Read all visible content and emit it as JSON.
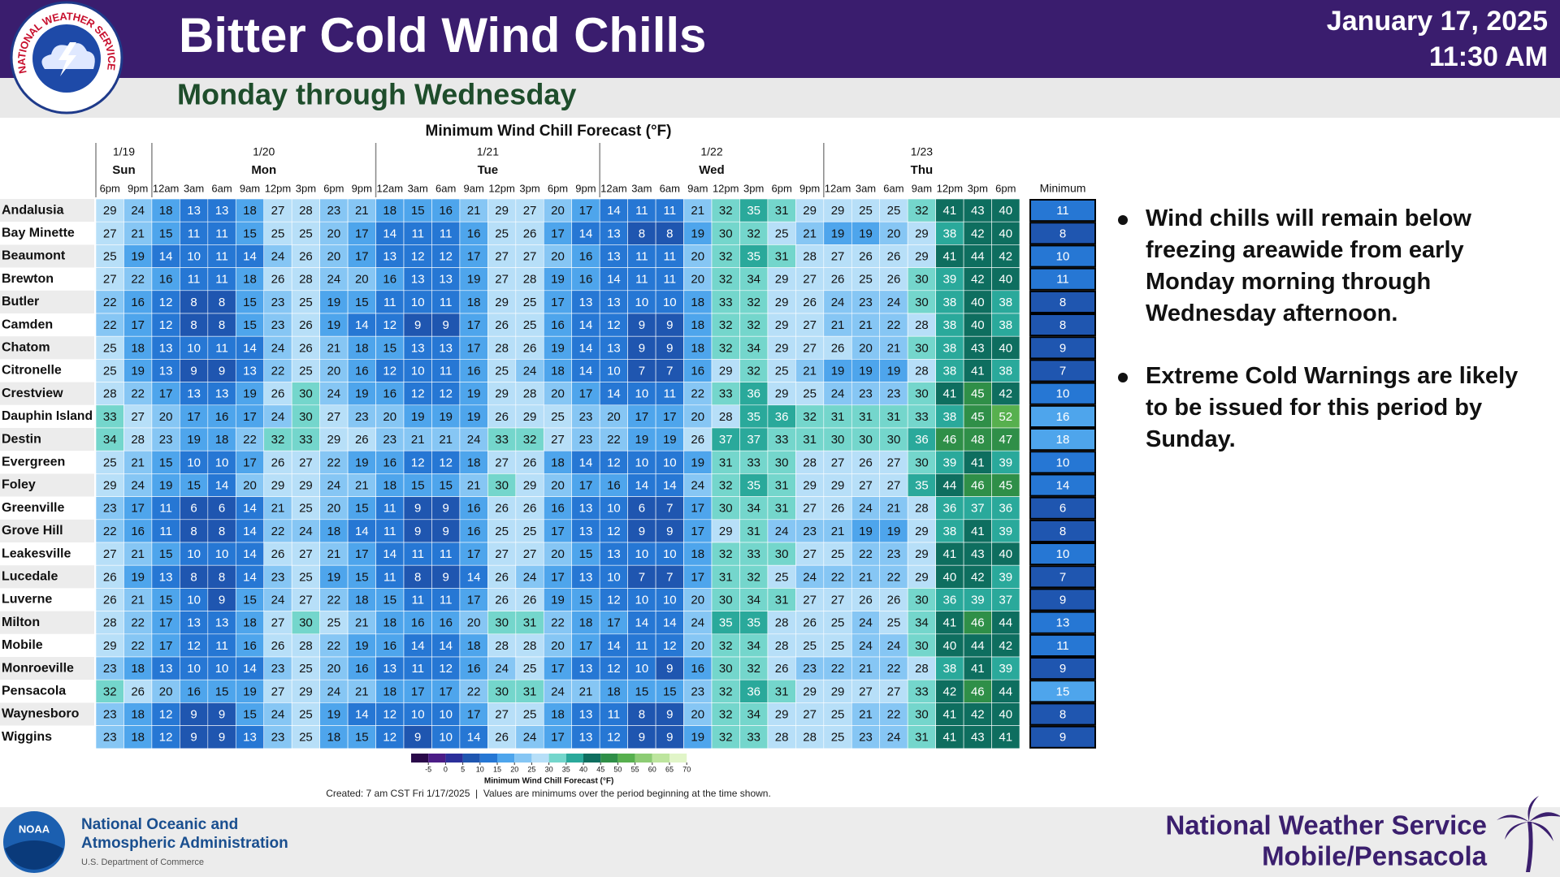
{
  "header": {
    "title": "Bitter Cold Wind Chills",
    "subtitle": "Monday through Wednesday",
    "date": "January 17, 2025",
    "time": "11:30 AM",
    "logo_text": "NATIONAL WEATHER SERVICE"
  },
  "table": {
    "title": "Minimum Wind Chill Forecast (°F)",
    "minimum_label": "Minimum",
    "days": [
      {
        "date": "1/19",
        "day": "Sun",
        "times": [
          "6pm",
          "9pm"
        ]
      },
      {
        "date": "1/20",
        "day": "Mon",
        "times": [
          "12am",
          "3am",
          "6am",
          "9am",
          "12pm",
          "3pm",
          "6pm",
          "9pm"
        ]
      },
      {
        "date": "1/21",
        "day": "Tue",
        "times": [
          "12am",
          "3am",
          "6am",
          "9am",
          "12pm",
          "3pm",
          "6pm",
          "9pm"
        ]
      },
      {
        "date": "1/22",
        "day": "Wed",
        "times": [
          "12am",
          "3am",
          "6am",
          "9am",
          "12pm",
          "3pm",
          "6pm",
          "9pm"
        ]
      },
      {
        "date": "1/23",
        "day": "Thu",
        "times": [
          "12am",
          "3am",
          "6am",
          "9am",
          "12pm",
          "3pm",
          "6pm"
        ]
      }
    ],
    "rows": [
      {
        "name": "Andalusia",
        "values": [
          29,
          24,
          18,
          13,
          13,
          18,
          27,
          28,
          23,
          21,
          18,
          15,
          16,
          21,
          29,
          27,
          20,
          17,
          14,
          11,
          11,
          21,
          32,
          35,
          31,
          29,
          29,
          25,
          25,
          32,
          41,
          43,
          40
        ],
        "minimum": 11
      },
      {
        "name": "Bay Minette",
        "values": [
          27,
          21,
          15,
          11,
          11,
          15,
          25,
          25,
          20,
          17,
          14,
          11,
          11,
          16,
          25,
          26,
          17,
          14,
          13,
          8,
          8,
          19,
          30,
          32,
          25,
          21,
          19,
          19,
          20,
          29,
          38,
          42,
          40
        ],
        "minimum": 8
      },
      {
        "name": "Beaumont",
        "values": [
          25,
          19,
          14,
          10,
          11,
          14,
          24,
          26,
          20,
          17,
          13,
          12,
          12,
          17,
          27,
          27,
          20,
          16,
          13,
          11,
          11,
          20,
          32,
          35,
          31,
          28,
          27,
          26,
          26,
          29,
          41,
          44,
          42
        ],
        "minimum": 10
      },
      {
        "name": "Brewton",
        "values": [
          27,
          22,
          16,
          11,
          11,
          18,
          26,
          28,
          24,
          20,
          16,
          13,
          13,
          19,
          27,
          28,
          19,
          16,
          14,
          11,
          11,
          20,
          32,
          34,
          29,
          27,
          26,
          25,
          26,
          30,
          39,
          42,
          40
        ],
        "minimum": 11
      },
      {
        "name": "Butler",
        "values": [
          22,
          16,
          12,
          8,
          8,
          15,
          23,
          25,
          19,
          15,
          11,
          10,
          11,
          18,
          29,
          25,
          17,
          13,
          13,
          10,
          10,
          18,
          33,
          32,
          29,
          26,
          24,
          23,
          24,
          30,
          38,
          40,
          38
        ],
        "minimum": 8
      },
      {
        "name": "Camden",
        "values": [
          22,
          17,
          12,
          8,
          8,
          15,
          23,
          26,
          19,
          14,
          12,
          9,
          9,
          17,
          26,
          25,
          16,
          14,
          12,
          9,
          9,
          18,
          32,
          32,
          29,
          27,
          21,
          21,
          22,
          28,
          38,
          40,
          38
        ],
        "minimum": 8
      },
      {
        "name": "Chatom",
        "values": [
          25,
          18,
          13,
          10,
          11,
          14,
          24,
          26,
          21,
          18,
          15,
          13,
          13,
          17,
          28,
          26,
          19,
          14,
          13,
          9,
          9,
          18,
          32,
          34,
          29,
          27,
          26,
          20,
          21,
          30,
          38,
          43,
          40
        ],
        "minimum": 9
      },
      {
        "name": "Citronelle",
        "values": [
          25,
          19,
          13,
          9,
          9,
          13,
          22,
          25,
          20,
          16,
          12,
          10,
          11,
          16,
          25,
          24,
          18,
          14,
          10,
          7,
          7,
          16,
          29,
          32,
          25,
          21,
          19,
          19,
          19,
          28,
          38,
          41,
          38
        ],
        "minimum": 7
      },
      {
        "name": "Crestview",
        "values": [
          28,
          22,
          17,
          13,
          13,
          19,
          26,
          30,
          24,
          19,
          16,
          12,
          12,
          19,
          29,
          28,
          20,
          17,
          14,
          10,
          11,
          22,
          33,
          36,
          29,
          25,
          24,
          23,
          23,
          30,
          41,
          45,
          42
        ],
        "minimum": 10
      },
      {
        "name": "Dauphin Island",
        "values": [
          33,
          27,
          20,
          17,
          16,
          17,
          24,
          30,
          27,
          23,
          20,
          19,
          19,
          19,
          26,
          29,
          25,
          23,
          20,
          17,
          17,
          20,
          28,
          35,
          36,
          32,
          31,
          31,
          31,
          33,
          38,
          45,
          52
        ],
        "minimum": 16
      },
      {
        "name": "Destin",
        "values": [
          34,
          28,
          23,
          19,
          18,
          22,
          32,
          33,
          29,
          26,
          23,
          21,
          21,
          24,
          33,
          32,
          27,
          23,
          22,
          19,
          19,
          26,
          37,
          37,
          33,
          31,
          30,
          30,
          30,
          36,
          46,
          48,
          47
        ],
        "minimum": 18
      },
      {
        "name": "Evergreen",
        "values": [
          25,
          21,
          15,
          10,
          10,
          17,
          26,
          27,
          22,
          19,
          16,
          12,
          12,
          18,
          27,
          26,
          18,
          14,
          12,
          10,
          10,
          19,
          31,
          33,
          30,
          28,
          27,
          26,
          27,
          30,
          39,
          41,
          39
        ],
        "minimum": 10
      },
      {
        "name": "Foley",
        "values": [
          29,
          24,
          19,
          15,
          14,
          20,
          29,
          29,
          24,
          21,
          18,
          15,
          15,
          21,
          30,
          29,
          20,
          17,
          16,
          14,
          14,
          24,
          32,
          35,
          31,
          29,
          29,
          27,
          27,
          35,
          44,
          46,
          45
        ],
        "minimum": 14
      },
      {
        "name": "Greenville",
        "values": [
          23,
          17,
          11,
          6,
          6,
          14,
          21,
          25,
          20,
          15,
          11,
          9,
          9,
          16,
          26,
          26,
          16,
          13,
          10,
          6,
          7,
          17,
          30,
          34,
          31,
          27,
          26,
          24,
          21,
          28,
          36,
          37,
          36
        ],
        "minimum": 6
      },
      {
        "name": "Grove Hill",
        "values": [
          22,
          16,
          11,
          8,
          8,
          14,
          22,
          24,
          18,
          14,
          11,
          9,
          9,
          16,
          25,
          25,
          17,
          13,
          12,
          9,
          9,
          17,
          29,
          31,
          24,
          23,
          21,
          19,
          19,
          29,
          38,
          41,
          39
        ],
        "minimum": 8
      },
      {
        "name": "Leakesville",
        "values": [
          27,
          21,
          15,
          10,
          10,
          14,
          26,
          27,
          21,
          17,
          14,
          11,
          11,
          17,
          27,
          27,
          20,
          15,
          13,
          10,
          10,
          18,
          32,
          33,
          30,
          27,
          25,
          22,
          23,
          29,
          41,
          43,
          40
        ],
        "minimum": 10
      },
      {
        "name": "Lucedale",
        "values": [
          26,
          19,
          13,
          8,
          8,
          14,
          23,
          25,
          19,
          15,
          11,
          8,
          9,
          14,
          26,
          24,
          17,
          13,
          10,
          7,
          7,
          17,
          31,
          32,
          25,
          24,
          22,
          21,
          22,
          29,
          40,
          42,
          39
        ],
        "minimum": 7
      },
      {
        "name": "Luverne",
        "values": [
          26,
          21,
          15,
          10,
          9,
          15,
          24,
          27,
          22,
          18,
          15,
          11,
          11,
          17,
          26,
          26,
          19,
          15,
          12,
          10,
          10,
          20,
          30,
          34,
          31,
          27,
          27,
          26,
          26,
          30,
          36,
          39,
          37
        ],
        "minimum": 9
      },
      {
        "name": "Milton",
        "values": [
          28,
          22,
          17,
          13,
          13,
          18,
          27,
          30,
          25,
          21,
          18,
          16,
          16,
          20,
          30,
          31,
          22,
          18,
          17,
          14,
          14,
          24,
          35,
          35,
          28,
          26,
          25,
          24,
          25,
          34,
          41,
          46,
          44
        ],
        "minimum": 13
      },
      {
        "name": "Mobile",
        "values": [
          29,
          22,
          17,
          12,
          11,
          16,
          26,
          28,
          22,
          19,
          16,
          14,
          14,
          18,
          28,
          28,
          20,
          17,
          14,
          11,
          12,
          20,
          32,
          34,
          28,
          25,
          25,
          24,
          24,
          30,
          40,
          44,
          42
        ],
        "minimum": 11
      },
      {
        "name": "Monroeville",
        "values": [
          23,
          18,
          13,
          10,
          10,
          14,
          23,
          25,
          20,
          16,
          13,
          11,
          12,
          16,
          24,
          25,
          17,
          13,
          12,
          10,
          9,
          16,
          30,
          32,
          26,
          23,
          22,
          21,
          22,
          28,
          38,
          41,
          39
        ],
        "minimum": 9
      },
      {
        "name": "Pensacola",
        "values": [
          32,
          26,
          20,
          16,
          15,
          19,
          27,
          29,
          24,
          21,
          18,
          17,
          17,
          22,
          30,
          31,
          24,
          21,
          18,
          15,
          15,
          23,
          32,
          36,
          31,
          29,
          29,
          27,
          27,
          33,
          42,
          46,
          44
        ],
        "minimum": 15
      },
      {
        "name": "Waynesboro",
        "values": [
          23,
          18,
          12,
          9,
          9,
          15,
          24,
          25,
          19,
          14,
          12,
          10,
          10,
          17,
          27,
          25,
          18,
          13,
          11,
          8,
          9,
          20,
          32,
          34,
          29,
          27,
          25,
          21,
          22,
          30,
          41,
          42,
          40
        ],
        "minimum": 8
      },
      {
        "name": "Wiggins",
        "values": [
          23,
          18,
          12,
          9,
          9,
          13,
          23,
          25,
          18,
          15,
          12,
          9,
          10,
          14,
          26,
          24,
          17,
          13,
          12,
          9,
          9,
          19,
          32,
          33,
          28,
          28,
          25,
          23,
          24,
          31,
          41,
          43,
          41
        ],
        "minimum": 9
      }
    ]
  },
  "colorbar": {
    "title": "Minimum Wind Chill Forecast (°F)",
    "ticks": [
      -5,
      0,
      5,
      10,
      15,
      20,
      25,
      30,
      35,
      40,
      45,
      50,
      55,
      60,
      65,
      70
    ],
    "colors": [
      "#2a0a4a",
      "#4b1c86",
      "#2b2f9a",
      "#1f56b0",
      "#2677d4",
      "#4ea5ec",
      "#86c6f4",
      "#b7dff8",
      "#74d6cc",
      "#2aa99b",
      "#0e6e5f",
      "#2f8f48",
      "#57b04e",
      "#8dcc74",
      "#bde59e",
      "#e1f5c8"
    ]
  },
  "bullets": [
    "Wind chills will remain below freezing areawide from early Monday morning through Wednesday afternoon.",
    "Extreme Cold Warnings are likely to be issued for this period by Sunday."
  ],
  "footnote": "Created: 7 am CST Fri 1/17/2025  |  Values are minimums over the period beginning at the time shown.",
  "footer": {
    "noaa_logo": "NOAA",
    "noaa_line1": "National Oceanic and",
    "noaa_line2": "Atmospheric Administration",
    "noaa_dept": "U.S. Department of Commerce",
    "nws": "National Weather Service",
    "office": "Mobile/Pensacola"
  }
}
